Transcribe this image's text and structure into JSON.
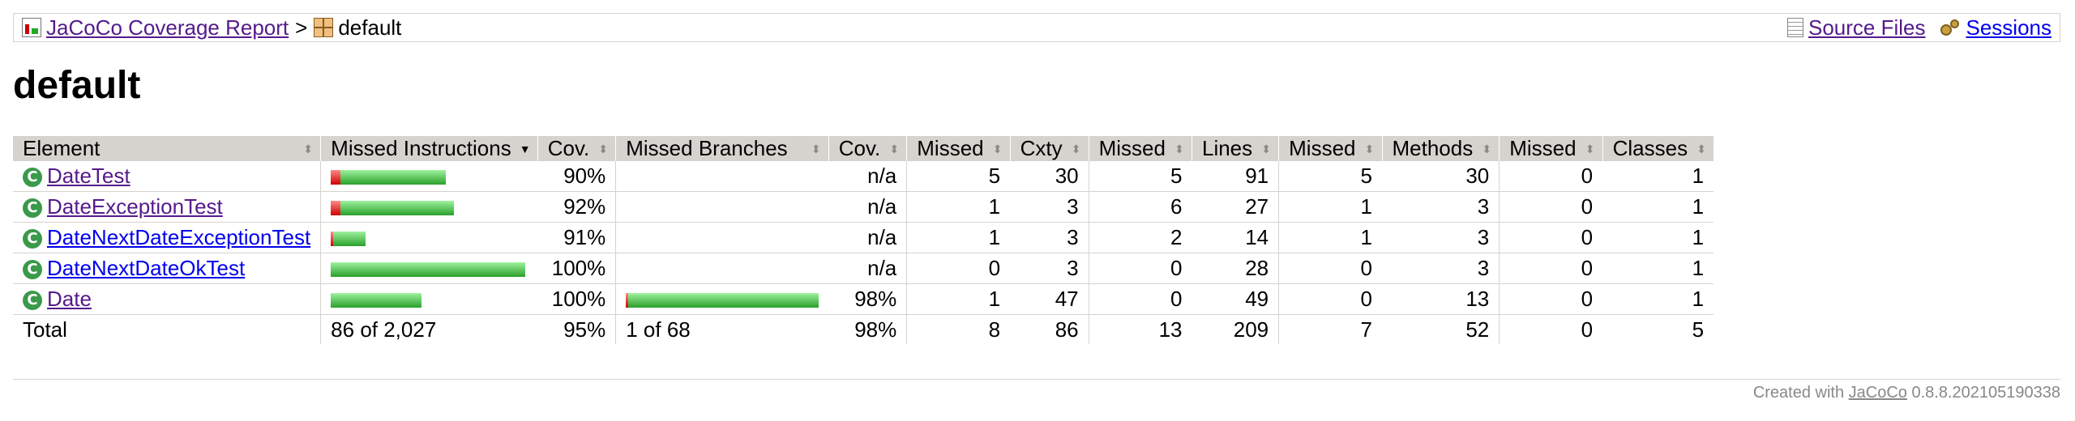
{
  "breadcrumb": {
    "report_link": "JaCoCo Coverage Report",
    "separator": ">",
    "current": "default",
    "source_files": "Source Files",
    "sessions": "Sessions"
  },
  "page_title": "default",
  "table": {
    "headers": [
      "Element",
      "Missed Instructions",
      "Cov.",
      "Missed Branches",
      "Cov.",
      "Missed",
      "Cxty",
      "Missed",
      "Lines",
      "Missed",
      "Methods",
      "Missed",
      "Classes"
    ],
    "rows": [
      {
        "name": "DateTest",
        "instr_cov": "90%",
        "instr_missed_frac": 0.1,
        "branch_cov": "n/a",
        "cxty_missed": "5",
        "cxty": "30",
        "lines_missed": "5",
        "lines": "91",
        "methods_missed": "5",
        "methods": "30",
        "classes_missed": "0",
        "classes": "1"
      },
      {
        "name": "DateExceptionTest",
        "instr_cov": "92%",
        "instr_missed_frac": 0.08,
        "branch_cov": "n/a",
        "cxty_missed": "1",
        "cxty": "3",
        "lines_missed": "6",
        "lines": "27",
        "methods_missed": "1",
        "methods": "3",
        "classes_missed": "0",
        "classes": "1"
      },
      {
        "name": "DateNextDateExceptionTest",
        "instr_cov": "91%",
        "instr_missed_frac": 0.09,
        "branch_cov": "n/a",
        "cxty_missed": "1",
        "cxty": "3",
        "lines_missed": "2",
        "lines": "14",
        "methods_missed": "1",
        "methods": "3",
        "classes_missed": "0",
        "classes": "1"
      },
      {
        "name": "DateNextDateOkTest",
        "instr_cov": "100%",
        "instr_missed_frac": 0.0,
        "branch_cov": "n/a",
        "cxty_missed": "0",
        "cxty": "3",
        "lines_missed": "0",
        "lines": "28",
        "methods_missed": "0",
        "methods": "3",
        "classes_missed": "0",
        "classes": "1"
      },
      {
        "name": "Date",
        "instr_cov": "100%",
        "instr_missed_frac": 0.0,
        "branch_cov": "98%",
        "branch_missed_frac": 0.02,
        "cxty_missed": "1",
        "cxty": "47",
        "lines_missed": "0",
        "lines": "49",
        "methods_missed": "0",
        "methods": "13",
        "classes_missed": "0",
        "classes": "1"
      }
    ],
    "total": {
      "label": "Total",
      "instr": "86 of 2,027",
      "instr_cov": "95%",
      "branch": "1 of 68",
      "branch_cov": "98%",
      "cxty_missed": "8",
      "cxty": "86",
      "lines_missed": "13",
      "lines": "209",
      "methods_missed": "7",
      "methods": "52",
      "classes_missed": "0",
      "classes": "5"
    }
  },
  "footer": {
    "prefix": "Created with",
    "link": "JaCoCo",
    "version": "0.8.8.202105190338"
  },
  "icons": {
    "class_icon_glyph": "C"
  },
  "colors": {
    "header_bg": "#d6d3ce",
    "bar_green": "#2aa02a",
    "bar_red": "#d00000"
  }
}
